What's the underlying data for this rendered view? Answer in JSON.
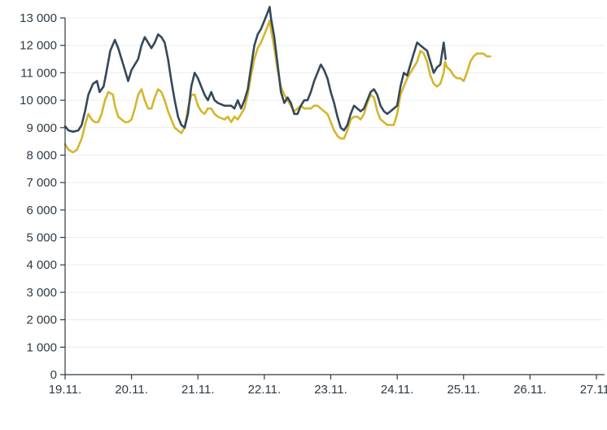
{
  "chart_data": {
    "type": "line",
    "title": "",
    "xlabel": "",
    "ylabel": "",
    "ylim": [
      0,
      13000
    ],
    "xlim": [
      0,
      8
    ],
    "grid": true,
    "y_ticks": [
      0,
      1000,
      2000,
      3000,
      4000,
      5000,
      6000,
      7000,
      8000,
      9000,
      10000,
      11000,
      12000,
      13000
    ],
    "y_tick_labels": [
      "0",
      "1 000",
      "2 000",
      "3 000",
      "4 000",
      "5 000",
      "6 000",
      "7 000",
      "8 000",
      "9 000",
      "10 000",
      "11 000",
      "12 000",
      "13 000"
    ],
    "x_ticks": [
      0,
      1,
      2,
      3,
      4,
      5,
      6,
      7,
      8
    ],
    "x_tick_labels": [
      "19.11.",
      "20.11.",
      "21.11.",
      "22.11.",
      "23.11.",
      "24.11.",
      "25.11.",
      "26.11.",
      "27.11."
    ],
    "series": [
      {
        "name": "dark",
        "color": "#34495a",
        "points": [
          [
            0.0,
            9050
          ],
          [
            0.05,
            8900
          ],
          [
            0.12,
            8850
          ],
          [
            0.2,
            8900
          ],
          [
            0.25,
            9100
          ],
          [
            0.3,
            9600
          ],
          [
            0.35,
            10200
          ],
          [
            0.42,
            10600
          ],
          [
            0.48,
            10700
          ],
          [
            0.52,
            10300
          ],
          [
            0.58,
            10500
          ],
          [
            0.62,
            11000
          ],
          [
            0.68,
            11800
          ],
          [
            0.75,
            12200
          ],
          [
            0.8,
            11900
          ],
          [
            0.85,
            11500
          ],
          [
            0.9,
            11100
          ],
          [
            0.95,
            10700
          ],
          [
            1.0,
            11100
          ],
          [
            1.05,
            11300
          ],
          [
            1.1,
            11500
          ],
          [
            1.15,
            12000
          ],
          [
            1.2,
            12300
          ],
          [
            1.25,
            12100
          ],
          [
            1.3,
            11900
          ],
          [
            1.35,
            12100
          ],
          [
            1.4,
            12400
          ],
          [
            1.45,
            12300
          ],
          [
            1.5,
            12100
          ],
          [
            1.55,
            11500
          ],
          [
            1.6,
            10700
          ],
          [
            1.65,
            10000
          ],
          [
            1.7,
            9400
          ],
          [
            1.75,
            9100
          ],
          [
            1.8,
            9000
          ],
          [
            1.85,
            9500
          ],
          [
            1.9,
            10500
          ],
          [
            1.95,
            11000
          ],
          [
            2.0,
            10800
          ],
          [
            2.05,
            10500
          ],
          [
            2.1,
            10200
          ],
          [
            2.15,
            10000
          ],
          [
            2.2,
            10300
          ],
          [
            2.25,
            10000
          ],
          [
            2.3,
            9900
          ],
          [
            2.4,
            9800
          ],
          [
            2.5,
            9800
          ],
          [
            2.55,
            9700
          ],
          [
            2.6,
            10000
          ],
          [
            2.65,
            9700
          ],
          [
            2.7,
            10000
          ],
          [
            2.75,
            10400
          ],
          [
            2.8,
            11200
          ],
          [
            2.85,
            12000
          ],
          [
            2.9,
            12400
          ],
          [
            2.95,
            12600
          ],
          [
            3.0,
            12900
          ],
          [
            3.05,
            13200
          ],
          [
            3.08,
            13400
          ],
          [
            3.1,
            13000
          ],
          [
            3.15,
            12300
          ],
          [
            3.2,
            11300
          ],
          [
            3.25,
            10300
          ],
          [
            3.3,
            9900
          ],
          [
            3.35,
            10100
          ],
          [
            3.4,
            9900
          ],
          [
            3.45,
            9500
          ],
          [
            3.5,
            9500
          ],
          [
            3.55,
            9800
          ],
          [
            3.6,
            10000
          ],
          [
            3.65,
            10000
          ],
          [
            3.7,
            10300
          ],
          [
            3.75,
            10700
          ],
          [
            3.8,
            11000
          ],
          [
            3.85,
            11300
          ],
          [
            3.9,
            11100
          ],
          [
            3.95,
            10800
          ],
          [
            4.0,
            10300
          ],
          [
            4.05,
            9900
          ],
          [
            4.1,
            9400
          ],
          [
            4.15,
            9000
          ],
          [
            4.2,
            8900
          ],
          [
            4.25,
            9100
          ],
          [
            4.3,
            9500
          ],
          [
            4.35,
            9800
          ],
          [
            4.4,
            9700
          ],
          [
            4.45,
            9600
          ],
          [
            4.5,
            9700
          ],
          [
            4.55,
            10000
          ],
          [
            4.6,
            10300
          ],
          [
            4.65,
            10400
          ],
          [
            4.7,
            10200
          ],
          [
            4.75,
            9800
          ],
          [
            4.8,
            9600
          ],
          [
            4.85,
            9500
          ],
          [
            4.9,
            9600
          ],
          [
            4.95,
            9700
          ],
          [
            5.0,
            9800
          ],
          [
            5.05,
            10500
          ],
          [
            5.1,
            11000
          ],
          [
            5.15,
            10900
          ],
          [
            5.2,
            11300
          ],
          [
            5.25,
            11700
          ],
          [
            5.3,
            12100
          ],
          [
            5.35,
            12000
          ],
          [
            5.4,
            11900
          ],
          [
            5.45,
            11800
          ],
          [
            5.5,
            11400
          ],
          [
            5.55,
            11000
          ],
          [
            5.6,
            11200
          ],
          [
            5.65,
            11300
          ],
          [
            5.7,
            12100
          ],
          [
            5.73,
            11500
          ]
        ]
      },
      {
        "name": "yellow",
        "color": "#d4b62c",
        "points": [
          [
            0.0,
            8400
          ],
          [
            0.05,
            8200
          ],
          [
            0.12,
            8100
          ],
          [
            0.18,
            8200
          ],
          [
            0.25,
            8600
          ],
          [
            0.3,
            9100
          ],
          [
            0.35,
            9500
          ],
          [
            0.4,
            9300
          ],
          [
            0.45,
            9200
          ],
          [
            0.5,
            9200
          ],
          [
            0.55,
            9500
          ],
          [
            0.6,
            10000
          ],
          [
            0.65,
            10300
          ],
          [
            0.72,
            10200
          ],
          [
            0.75,
            9800
          ],
          [
            0.8,
            9400
          ],
          [
            0.85,
            9300
          ],
          [
            0.9,
            9200
          ],
          [
            0.95,
            9200
          ],
          [
            1.0,
            9300
          ],
          [
            1.05,
            9700
          ],
          [
            1.1,
            10200
          ],
          [
            1.15,
            10400
          ],
          [
            1.2,
            10000
          ],
          [
            1.25,
            9700
          ],
          [
            1.3,
            9700
          ],
          [
            1.35,
            10100
          ],
          [
            1.4,
            10400
          ],
          [
            1.45,
            10300
          ],
          [
            1.5,
            10000
          ],
          [
            1.55,
            9600
          ],
          [
            1.6,
            9300
          ],
          [
            1.65,
            9000
          ],
          [
            1.7,
            8900
          ],
          [
            1.75,
            8800
          ],
          [
            1.8,
            9000
          ],
          [
            1.85,
            9700
          ],
          [
            1.9,
            10200
          ],
          [
            1.95,
            10200
          ],
          [
            2.0,
            9800
          ],
          [
            2.05,
            9600
          ],
          [
            2.1,
            9500
          ],
          [
            2.15,
            9700
          ],
          [
            2.2,
            9700
          ],
          [
            2.25,
            9500
          ],
          [
            2.3,
            9400
          ],
          [
            2.4,
            9300
          ],
          [
            2.45,
            9400
          ],
          [
            2.5,
            9200
          ],
          [
            2.55,
            9400
          ],
          [
            2.6,
            9300
          ],
          [
            2.65,
            9500
          ],
          [
            2.7,
            9700
          ],
          [
            2.75,
            10200
          ],
          [
            2.8,
            10900
          ],
          [
            2.85,
            11500
          ],
          [
            2.9,
            11900
          ],
          [
            2.95,
            12100
          ],
          [
            3.0,
            12400
          ],
          [
            3.05,
            12700
          ],
          [
            3.08,
            12900
          ],
          [
            3.1,
            12600
          ],
          [
            3.15,
            11900
          ],
          [
            3.2,
            11100
          ],
          [
            3.25,
            10500
          ],
          [
            3.3,
            10200
          ],
          [
            3.35,
            10000
          ],
          [
            3.4,
            9800
          ],
          [
            3.45,
            9600
          ],
          [
            3.5,
            9700
          ],
          [
            3.55,
            9800
          ],
          [
            3.6,
            9700
          ],
          [
            3.65,
            9700
          ],
          [
            3.7,
            9700
          ],
          [
            3.75,
            9800
          ],
          [
            3.8,
            9800
          ],
          [
            3.85,
            9700
          ],
          [
            3.9,
            9600
          ],
          [
            3.95,
            9500
          ],
          [
            4.0,
            9200
          ],
          [
            4.05,
            8900
          ],
          [
            4.1,
            8700
          ],
          [
            4.15,
            8600
          ],
          [
            4.2,
            8600
          ],
          [
            4.25,
            8900
          ],
          [
            4.3,
            9300
          ],
          [
            4.35,
            9400
          ],
          [
            4.4,
            9400
          ],
          [
            4.45,
            9300
          ],
          [
            4.5,
            9500
          ],
          [
            4.55,
            9900
          ],
          [
            4.6,
            10200
          ],
          [
            4.65,
            10100
          ],
          [
            4.7,
            9600
          ],
          [
            4.75,
            9300
          ],
          [
            4.8,
            9200
          ],
          [
            4.85,
            9100
          ],
          [
            4.9,
            9100
          ],
          [
            4.95,
            9100
          ],
          [
            5.0,
            9500
          ],
          [
            5.05,
            10200
          ],
          [
            5.1,
            10500
          ],
          [
            5.15,
            10800
          ],
          [
            5.2,
            11000
          ],
          [
            5.25,
            11200
          ],
          [
            5.3,
            11400
          ],
          [
            5.35,
            11800
          ],
          [
            5.4,
            11700
          ],
          [
            5.45,
            11400
          ],
          [
            5.5,
            10900
          ],
          [
            5.55,
            10600
          ],
          [
            5.6,
            10500
          ],
          [
            5.65,
            10600
          ],
          [
            5.7,
            11000
          ],
          [
            5.72,
            11400
          ],
          [
            5.75,
            11200
          ],
          [
            5.8,
            11100
          ],
          [
            5.85,
            10900
          ],
          [
            5.9,
            10800
          ],
          [
            5.95,
            10800
          ],
          [
            6.0,
            10700
          ],
          [
            6.05,
            11000
          ],
          [
            6.1,
            11400
          ],
          [
            6.15,
            11600
          ],
          [
            6.2,
            11700
          ],
          [
            6.25,
            11700
          ],
          [
            6.3,
            11700
          ],
          [
            6.35,
            11600
          ],
          [
            6.4,
            11600
          ]
        ]
      }
    ]
  }
}
